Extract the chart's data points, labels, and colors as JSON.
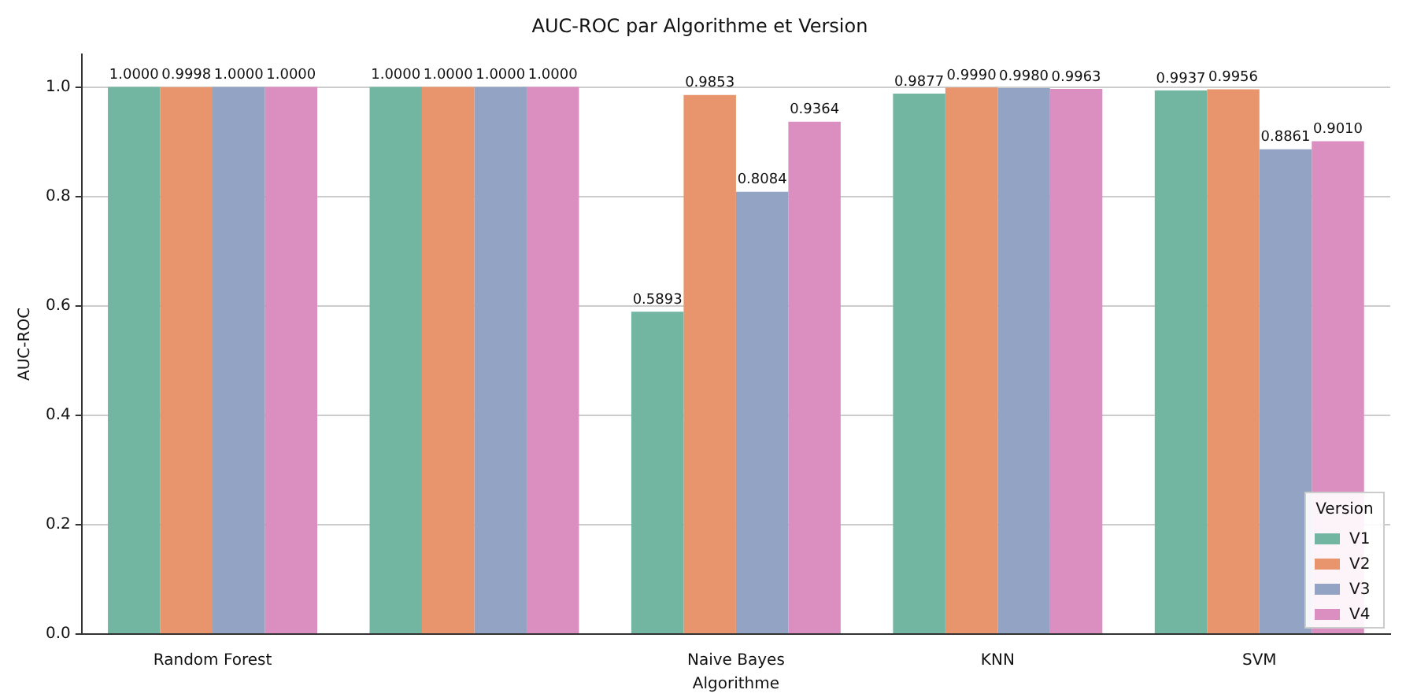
{
  "chart_data": {
    "type": "bar",
    "title": "AUC-ROC par Algorithme et Version",
    "xlabel": "Algorithme",
    "ylabel": "AUC-ROC",
    "legend_title": "Version",
    "categories": [
      "Random Forest",
      null,
      "Naive Bayes",
      "KNN",
      "SVM"
    ],
    "series": [
      {
        "name": "V1",
        "color": "#72b6a1",
        "values": [
          1.0,
          1.0,
          0.5893,
          0.9877,
          0.9937
        ],
        "value_labels": [
          "1.0000",
          "1.0000",
          "0.5893",
          "0.9877",
          "0.9937"
        ]
      },
      {
        "name": "V2",
        "color": "#e8956d",
        "values": [
          0.9998,
          1.0,
          0.9853,
          0.999,
          0.9956
        ],
        "value_labels": [
          "0.9998",
          "1.0000",
          "0.9853",
          "0.9990",
          "0.9956"
        ]
      },
      {
        "name": "V3",
        "color": "#93a3c4",
        "values": [
          1.0,
          1.0,
          0.8084,
          0.998,
          0.8861
        ],
        "value_labels": [
          "1.0000",
          "1.0000",
          "0.8084",
          "0.9980",
          "0.8861"
        ]
      },
      {
        "name": "V4",
        "color": "#db8fc0",
        "values": [
          1.0,
          1.0,
          0.9364,
          0.9963,
          0.901
        ],
        "value_labels": [
          "1.0000",
          "1.0000",
          "0.9364",
          "0.9963",
          "0.9010"
        ]
      }
    ],
    "ylim": [
      0,
      1.06
    ],
    "yticks": [
      {
        "value": 0,
        "label": "0.0"
      },
      {
        "value": 0.2,
        "label": "0.2"
      },
      {
        "value": 0.4,
        "label": "0.4"
      },
      {
        "value": 0.6,
        "label": "0.6"
      },
      {
        "value": 0.8,
        "label": "0.8"
      },
      {
        "value": 1.0,
        "label": "1.0"
      }
    ],
    "grid": "y",
    "legend": "bottom right"
  }
}
